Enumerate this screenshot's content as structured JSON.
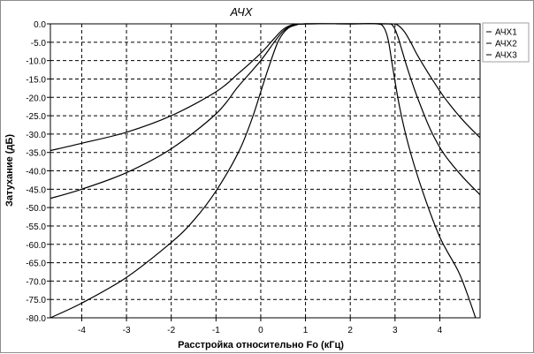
{
  "chart_data": {
    "type": "line",
    "title": "АЧХ",
    "xlabel": "Расстройка относительно Fo (кГц)",
    "ylabel": "Затухание (дБ)",
    "xlim": [
      -4.7,
      4.9
    ],
    "ylim": [
      -80,
      0
    ],
    "x_ticks": [
      -4,
      -3,
      -2,
      -1,
      0,
      1,
      2,
      3,
      4
    ],
    "y_ticks": [
      0,
      -5,
      -10,
      -15,
      -20,
      -25,
      -30,
      -35,
      -40,
      -45,
      -50,
      -55,
      -60,
      -65,
      -70,
      -75,
      -80
    ],
    "grid": true,
    "legend_position": "top-right",
    "series": [
      {
        "name": "АЧХ1",
        "points": [
          [
            -4.7,
            -80.0
          ],
          [
            -4.0,
            -76.0
          ],
          [
            -3.0,
            -69.0
          ],
          [
            -2.0,
            -59.5
          ],
          [
            -1.5,
            -53.5
          ],
          [
            -1.0,
            -45.5
          ],
          [
            -0.5,
            -35.0
          ],
          [
            -0.2,
            -26.0
          ],
          [
            0.0,
            -18.5
          ],
          [
            0.2,
            -11.0
          ],
          [
            0.4,
            -4.5
          ],
          [
            0.6,
            -1.3
          ],
          [
            0.8,
            -0.3
          ],
          [
            1.0,
            0.0
          ],
          [
            2.0,
            0.0
          ],
          [
            2.6,
            0.0
          ],
          [
            2.75,
            -1.0
          ],
          [
            2.85,
            -4.5
          ],
          [
            2.95,
            -12.0
          ],
          [
            3.1,
            -22.5
          ],
          [
            3.3,
            -33.0
          ],
          [
            3.6,
            -45.0
          ],
          [
            4.0,
            -58.0
          ],
          [
            4.4,
            -67.0
          ],
          [
            4.6,
            -73.0
          ],
          [
            4.8,
            -80.0
          ]
        ]
      },
      {
        "name": "АЧХ2",
        "points": [
          [
            -4.7,
            -47.5
          ],
          [
            -4.0,
            -45.0
          ],
          [
            -3.0,
            -40.5
          ],
          [
            -2.0,
            -34.0
          ],
          [
            -1.0,
            -24.5
          ],
          [
            -0.5,
            -17.0
          ],
          [
            0.0,
            -10.0
          ],
          [
            0.3,
            -5.0
          ],
          [
            0.5,
            -2.0
          ],
          [
            0.7,
            -0.5
          ],
          [
            1.0,
            0.0
          ],
          [
            2.0,
            0.0
          ],
          [
            2.8,
            0.0
          ],
          [
            2.95,
            -0.5
          ],
          [
            3.05,
            -3.0
          ],
          [
            3.15,
            -7.0
          ],
          [
            3.3,
            -13.0
          ],
          [
            3.5,
            -20.0
          ],
          [
            3.8,
            -29.0
          ],
          [
            4.1,
            -35.5
          ],
          [
            4.5,
            -41.5
          ],
          [
            4.9,
            -46.5
          ]
        ]
      },
      {
        "name": "АЧХ3",
        "points": [
          [
            -4.7,
            -34.5
          ],
          [
            -4.0,
            -32.5
          ],
          [
            -3.0,
            -29.5
          ],
          [
            -2.0,
            -25.0
          ],
          [
            -1.0,
            -18.5
          ],
          [
            -0.5,
            -13.5
          ],
          [
            0.0,
            -8.0
          ],
          [
            0.3,
            -4.0
          ],
          [
            0.5,
            -1.5
          ],
          [
            0.7,
            -0.3
          ],
          [
            1.0,
            0.0
          ],
          [
            2.0,
            0.0
          ],
          [
            2.9,
            0.0
          ],
          [
            3.05,
            -0.3
          ],
          [
            3.2,
            -2.0
          ],
          [
            3.35,
            -5.0
          ],
          [
            3.5,
            -8.5
          ],
          [
            3.8,
            -14.5
          ],
          [
            4.1,
            -20.0
          ],
          [
            4.5,
            -26.0
          ],
          [
            4.9,
            -31.0
          ]
        ]
      }
    ]
  },
  "colors": {
    "frame": "#8c8c8c",
    "plot_border": "#000000",
    "grid": "#000000",
    "curve": "#000000",
    "legend_border": "#a0a0a0"
  }
}
